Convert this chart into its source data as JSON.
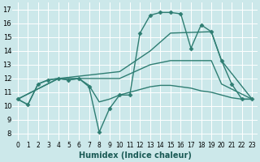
{
  "title": "",
  "xlabel": "Humidex (Indice chaleur)",
  "ylabel": "",
  "background_color": "#cce8ea",
  "grid_color": "#ffffff",
  "line_color": "#2e7d72",
  "xlim": [
    -0.5,
    23.5
  ],
  "ylim": [
    7.5,
    17.5
  ],
  "xticks": [
    0,
    1,
    2,
    3,
    4,
    5,
    6,
    7,
    8,
    9,
    10,
    11,
    12,
    13,
    14,
    15,
    16,
    17,
    18,
    19,
    20,
    21,
    22,
    23
  ],
  "yticks": [
    8,
    9,
    10,
    11,
    12,
    13,
    14,
    15,
    16,
    17
  ],
  "lines": [
    {
      "x": [
        0,
        1,
        2,
        3,
        4,
        5,
        6,
        7,
        8,
        9,
        10,
        11,
        12,
        13,
        14,
        15,
        16,
        17,
        18,
        19,
        20,
        21,
        22,
        23
      ],
      "y": [
        10.5,
        10.1,
        11.6,
        11.9,
        12.0,
        11.9,
        12.0,
        11.5,
        10.3,
        10.5,
        10.8,
        11.0,
        11.2,
        11.4,
        11.5,
        11.5,
        11.4,
        11.3,
        11.1,
        11.0,
        10.8,
        10.6,
        10.5,
        10.5
      ],
      "marker": null,
      "linewidth": 1.0
    },
    {
      "x": [
        0,
        1,
        2,
        3,
        4,
        5,
        6,
        7,
        8,
        9,
        10,
        11,
        12,
        13,
        14,
        15,
        16,
        17,
        18,
        19,
        20,
        21,
        22,
        23
      ],
      "y": [
        10.5,
        10.1,
        11.6,
        11.9,
        12.0,
        11.9,
        12.0,
        11.4,
        8.1,
        9.8,
        10.8,
        10.8,
        15.3,
        16.6,
        16.8,
        16.8,
        16.7,
        14.2,
        15.9,
        15.4,
        13.3,
        11.6,
        10.5,
        10.5
      ],
      "marker": "D",
      "linewidth": 1.0
    },
    {
      "x": [
        0,
        4,
        10,
        13,
        15,
        19,
        20,
        23
      ],
      "y": [
        10.5,
        12.0,
        12.5,
        14.0,
        15.3,
        15.4,
        13.3,
        10.5
      ],
      "marker": null,
      "linewidth": 1.0
    },
    {
      "x": [
        0,
        4,
        10,
        13,
        15,
        17,
        19,
        20,
        23
      ],
      "y": [
        10.5,
        12.0,
        12.0,
        13.0,
        13.3,
        13.3,
        13.3,
        11.6,
        10.5
      ],
      "marker": null,
      "linewidth": 1.0
    }
  ]
}
